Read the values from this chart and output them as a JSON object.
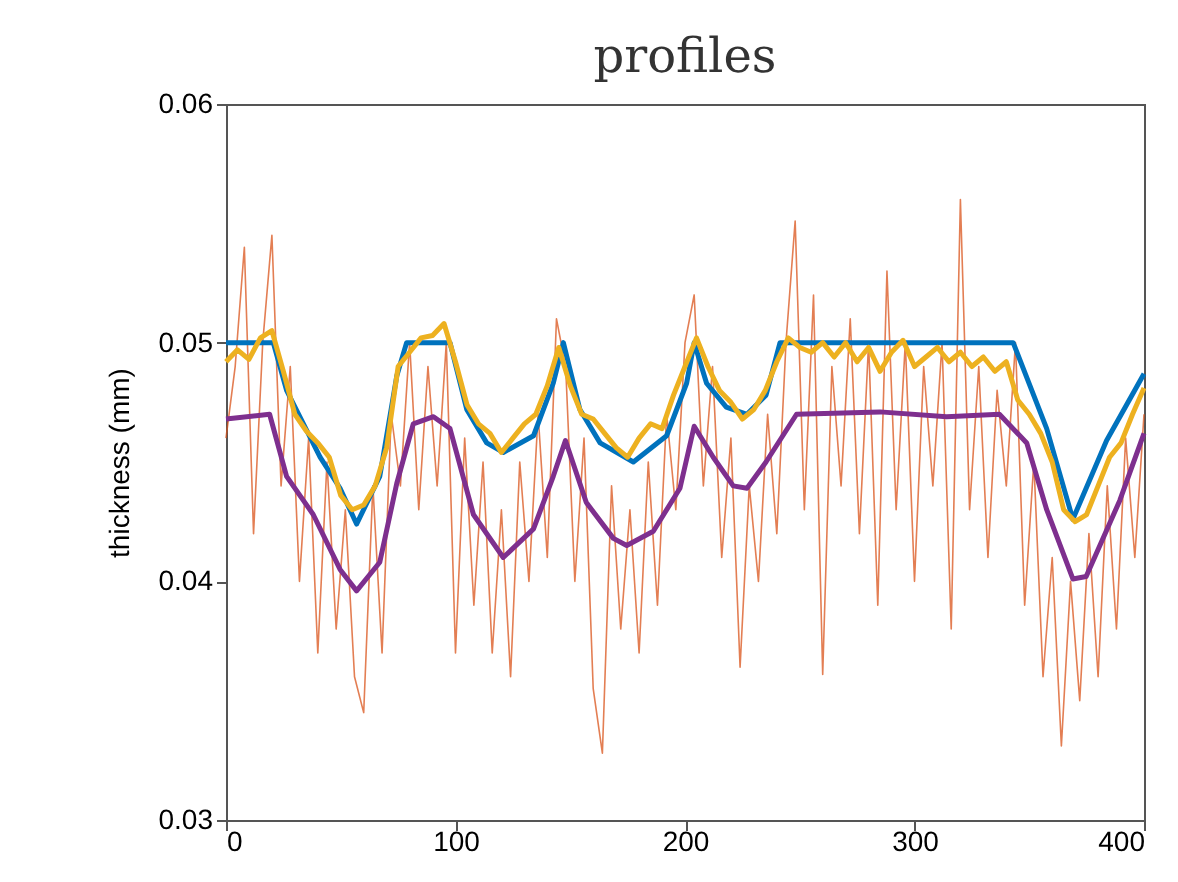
{
  "chart_data": {
    "type": "line",
    "title": "profiles",
    "ylabel": "thickness (mm)",
    "xlim": [
      0,
      400
    ],
    "xticks": [
      0,
      100,
      200,
      300,
      400
    ],
    "ylim": [
      0.03,
      0.06
    ],
    "yticks": [
      0.03,
      0.04,
      0.05,
      0.06
    ],
    "grid": false,
    "series": [
      {
        "color": "#d95319",
        "x": [
          0,
          4,
          8,
          12,
          16,
          20,
          24,
          28,
          32,
          36,
          40,
          44,
          48,
          52,
          56,
          60,
          64,
          68,
          72,
          76,
          80,
          84,
          88,
          92,
          96,
          100,
          104,
          108,
          112,
          116,
          120,
          124,
          128,
          132,
          136,
          140,
          144,
          148,
          152,
          156,
          160,
          164,
          168,
          172,
          176,
          180,
          184,
          188,
          192,
          196,
          200,
          204,
          208,
          212,
          216,
          220,
          224,
          228,
          232,
          236,
          240,
          244,
          248,
          252,
          256,
          260,
          264,
          268,
          272,
          276,
          280,
          284,
          288,
          292,
          296,
          300,
          304,
          308,
          312,
          316,
          320,
          324,
          328,
          332,
          336,
          340,
          344,
          348,
          352,
          356,
          360,
          364,
          368,
          372,
          376,
          380,
          384,
          388,
          392,
          396,
          400
        ],
        "values": [
          0.046,
          0.049,
          0.054,
          0.042,
          0.05,
          0.0545,
          0.044,
          0.049,
          0.04,
          0.046,
          0.037,
          0.045,
          0.038,
          0.043,
          0.036,
          0.0345,
          0.044,
          0.037,
          0.047,
          0.044,
          0.05,
          0.043,
          0.049,
          0.044,
          0.05,
          0.037,
          0.046,
          0.039,
          0.045,
          0.037,
          0.043,
          0.036,
          0.045,
          0.04,
          0.047,
          0.041,
          0.051,
          0.049,
          0.04,
          0.046,
          0.0355,
          0.0328,
          0.044,
          0.038,
          0.043,
          0.037,
          0.045,
          0.039,
          0.047,
          0.043,
          0.05,
          0.052,
          0.044,
          0.049,
          0.041,
          0.046,
          0.0364,
          0.044,
          0.04,
          0.047,
          0.042,
          0.05,
          0.0551,
          0.043,
          0.052,
          0.0361,
          0.049,
          0.044,
          0.051,
          0.042,
          0.05,
          0.039,
          0.053,
          0.043,
          0.05,
          0.04,
          0.049,
          0.044,
          0.05,
          0.038,
          0.056,
          0.043,
          0.049,
          0.041,
          0.048,
          0.044,
          0.05,
          0.039,
          0.045,
          0.036,
          0.041,
          0.0331,
          0.04,
          0.035,
          0.042,
          0.036,
          0.044,
          0.038,
          0.046,
          0.041,
          0.047
        ]
      },
      {
        "color": "#0072bd",
        "x": [
          0,
          20.6,
          26.4,
          41,
          49.7,
          56.9,
          67,
          74.4,
          78.7,
          97.6,
          104.9,
          113.6,
          120.8,
          134,
          142.6,
          147,
          154.2,
          163,
          177.5,
          192,
          200.7,
          204,
          209.4,
          218,
          227,
          235.3,
          241.4,
          343,
          357.6,
          369,
          383.7,
          400
        ],
        "values": [
          0.05,
          0.05,
          0.048,
          0.0452,
          0.0439,
          0.0424,
          0.0444,
          0.0486,
          0.05,
          0.05,
          0.0472,
          0.0458,
          0.0454,
          0.0461,
          0.0483,
          0.05,
          0.0472,
          0.0458,
          0.045,
          0.0461,
          0.0483,
          0.05,
          0.0483,
          0.0473,
          0.047,
          0.0478,
          0.05,
          0.05,
          0.0464,
          0.0426,
          0.0459,
          0.0487
        ]
      },
      {
        "color": "#edb120",
        "x": [
          0,
          5,
          10,
          15,
          20,
          25,
          30,
          35,
          40,
          45,
          50,
          55,
          60,
          65,
          70,
          75,
          80,
          85,
          90,
          95,
          100,
          105,
          110,
          115,
          120,
          125,
          130,
          135,
          140,
          145,
          150,
          155,
          160,
          165,
          170,
          175,
          180,
          185,
          190,
          195,
          200,
          205,
          210,
          215,
          220,
          225,
          230,
          235,
          240,
          245,
          250,
          255,
          260,
          265,
          270,
          275,
          280,
          285,
          290,
          295,
          300,
          305,
          310,
          315,
          320,
          325,
          330,
          335,
          340,
          345,
          350,
          355,
          360,
          365,
          370,
          375,
          380,
          385,
          390,
          395,
          400
        ],
        "values": [
          0.0492,
          0.0497,
          0.0493,
          0.0502,
          0.0505,
          0.0488,
          0.047,
          0.0463,
          0.0458,
          0.0452,
          0.0436,
          0.043,
          0.0432,
          0.044,
          0.0456,
          0.049,
          0.0496,
          0.0502,
          0.0503,
          0.0508,
          0.0492,
          0.0474,
          0.0466,
          0.0462,
          0.0454,
          0.046,
          0.0466,
          0.047,
          0.0482,
          0.0498,
          0.0482,
          0.047,
          0.0468,
          0.0462,
          0.0456,
          0.0452,
          0.046,
          0.0466,
          0.0464,
          0.0478,
          0.049,
          0.0502,
          0.049,
          0.048,
          0.0475,
          0.0468,
          0.0472,
          0.048,
          0.0492,
          0.0502,
          0.0498,
          0.0496,
          0.05,
          0.0494,
          0.05,
          0.0492,
          0.0498,
          0.0488,
          0.0496,
          0.0501,
          0.049,
          0.0494,
          0.0498,
          0.0492,
          0.0496,
          0.049,
          0.0494,
          0.0488,
          0.0492,
          0.0476,
          0.047,
          0.0462,
          0.045,
          0.043,
          0.0425,
          0.0428,
          0.044,
          0.0452,
          0.0458,
          0.047,
          0.0481
        ]
      },
      {
        "color": "#7e2f8e",
        "x": [
          0,
          19,
          26.4,
          38,
          49.7,
          56.9,
          67,
          74.4,
          81.6,
          90.4,
          97.6,
          107.8,
          120.8,
          134,
          142.6,
          147.9,
          157,
          168.8,
          174.6,
          186.2,
          197.8,
          204,
          212.3,
          221,
          227,
          235.3,
          248.6,
          285,
          314,
          337,
          348.9,
          357.6,
          369,
          374.8,
          389.5,
          400
        ],
        "values": [
          0.0468,
          0.047,
          0.0444,
          0.0428,
          0.0405,
          0.0396,
          0.0408,
          0.0441,
          0.0466,
          0.0469,
          0.0464,
          0.0428,
          0.041,
          0.0422,
          0.0444,
          0.0459,
          0.0433,
          0.0418,
          0.0415,
          0.0421,
          0.0439,
          0.0465,
          0.0452,
          0.044,
          0.0439,
          0.045,
          0.047,
          0.0471,
          0.0469,
          0.047,
          0.0458,
          0.043,
          0.0401,
          0.0402,
          0.0434,
          0.0462
        ]
      }
    ]
  }
}
